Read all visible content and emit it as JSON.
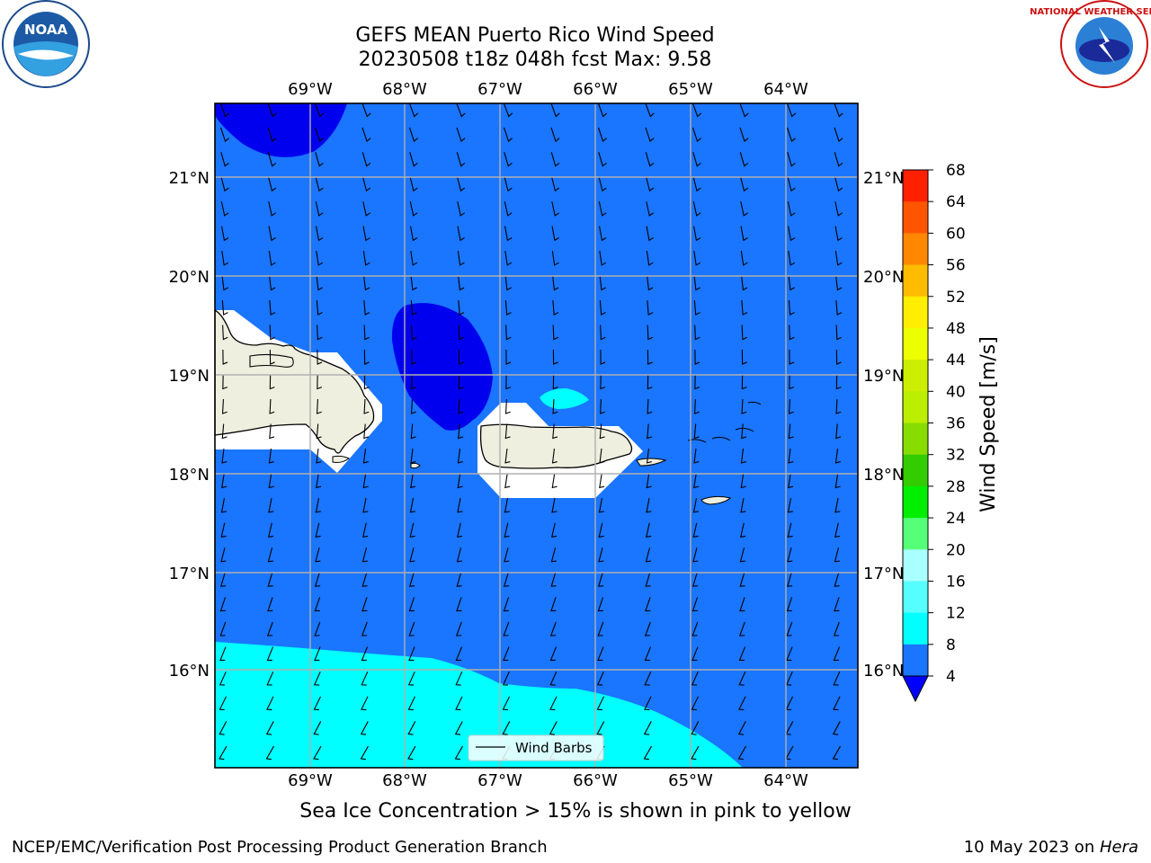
{
  "title": {
    "line1": "GEFS MEAN Puerto Rico Wind Speed",
    "line2": "20230508 t18z 048h fcst   Max: 9.58"
  },
  "logos": {
    "left": "NOAA",
    "right": "NATIONAL WEATHER SERVICE"
  },
  "lon_labels": [
    "69°W",
    "68°W",
    "67°W",
    "66°W",
    "65°W",
    "64°W"
  ],
  "lat_labels": [
    "21°N",
    "20°N",
    "19°N",
    "18°N",
    "17°N",
    "16°N"
  ],
  "legend": {
    "label": "Wind Barbs"
  },
  "colorbar": {
    "label": "Wind Speed [m/s]",
    "ticks": [
      "68",
      "64",
      "60",
      "56",
      "52",
      "48",
      "44",
      "40",
      "36",
      "32",
      "28",
      "24",
      "20",
      "16",
      "12",
      "8",
      "4"
    ],
    "colors": [
      "#ff0000",
      "#ff2000",
      "#ff5500",
      "#ff8800",
      "#ffbb00",
      "#ffee00",
      "#eeff00",
      "#ccee00",
      "#bbee00",
      "#88dd00",
      "#33cc00",
      "#00ee00",
      "#55ff77",
      "#aaffff",
      "#55ffff",
      "#00ffff",
      "#1a75ff"
    ],
    "extend_color": "#0000ff"
  },
  "caption": "Sea Ice Concentration > 15% is shown in pink to yellow",
  "footer": {
    "left": "NCEP/EMC/Verification Post Processing Product Generation Branch",
    "right_prefix": "10 May 2023 on ",
    "right_machine": "Hera"
  }
}
